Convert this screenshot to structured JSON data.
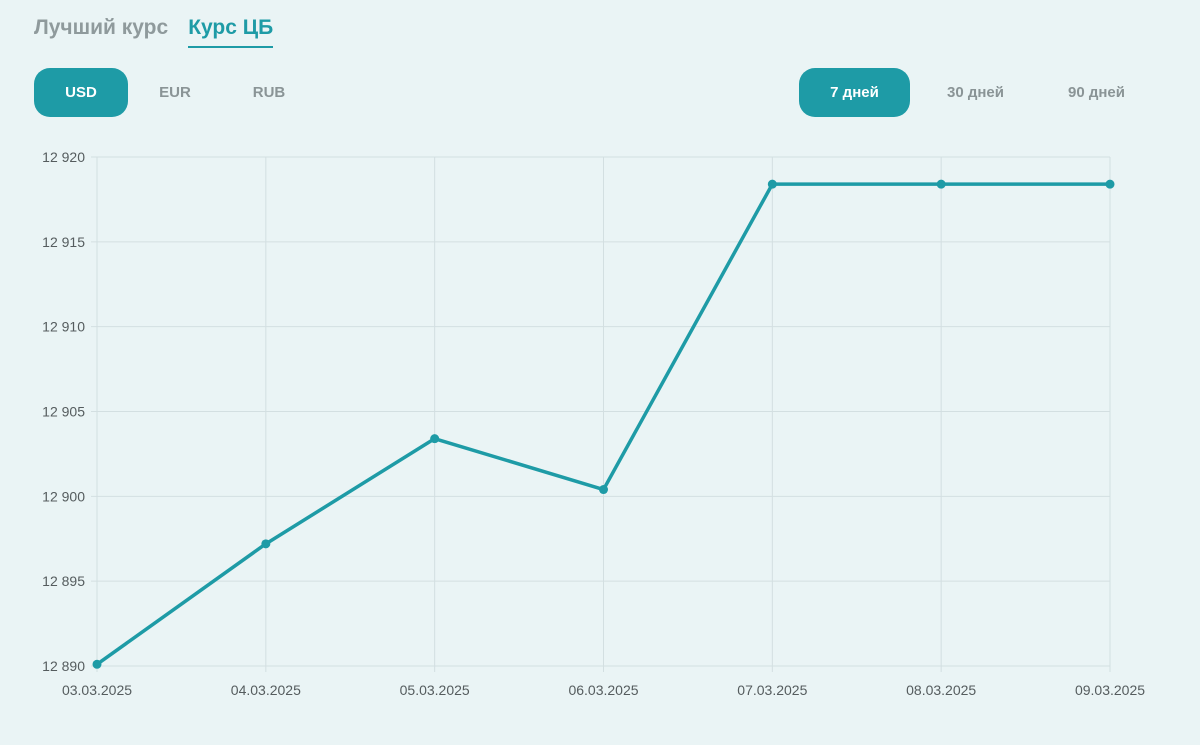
{
  "tabs": [
    {
      "label": "Лучший курс",
      "active": false
    },
    {
      "label": "Курс ЦБ",
      "active": true
    }
  ],
  "currencies": [
    {
      "label": "USD",
      "active": true
    },
    {
      "label": "EUR",
      "active": false
    },
    {
      "label": "RUB",
      "active": false
    }
  ],
  "periods": [
    {
      "label": "7 дней",
      "active": true
    },
    {
      "label": "30 дней",
      "active": false
    },
    {
      "label": "90 дней",
      "active": false
    }
  ],
  "colors": {
    "accent": "#1e9ba6",
    "grid": "#d3dfe1",
    "background": "#eaf4f5"
  },
  "chart_data": {
    "type": "line",
    "categories": [
      "03.03.2025",
      "04.03.2025",
      "05.03.2025",
      "06.03.2025",
      "07.03.2025",
      "08.03.2025",
      "09.03.2025"
    ],
    "series": [
      {
        "values": [
          12890.1,
          12897.2,
          12903.4,
          12900.4,
          12918.4,
          12918.4,
          12918.4
        ]
      }
    ],
    "yticks": [
      12890,
      12895,
      12900,
      12905,
      12910,
      12915,
      12920
    ],
    "ytick_labels": [
      "12 890",
      "12 895",
      "12 900",
      "12 905",
      "12 910",
      "12 915",
      "12 920"
    ],
    "ylim": [
      12890,
      12920
    ],
    "grid": true,
    "legend": "none",
    "title": "",
    "xlabel": "",
    "ylabel": ""
  }
}
